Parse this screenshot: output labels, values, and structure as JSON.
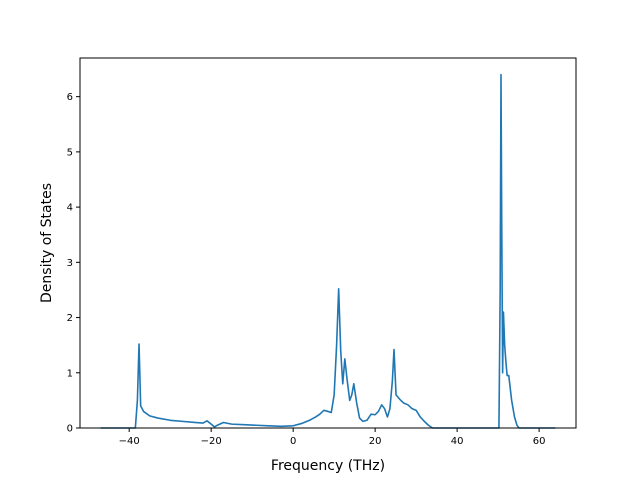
{
  "chart_data": {
    "type": "line",
    "title": "",
    "xlabel": "Frequency (THz)",
    "ylabel": "Density of States",
    "xlim": [
      -52,
      69
    ],
    "ylim": [
      0,
      6.7
    ],
    "xticks": [
      -40,
      -20,
      0,
      20,
      40,
      60
    ],
    "yticks": [
      0,
      1,
      2,
      3,
      4,
      5,
      6
    ],
    "grid": false,
    "legend": "none",
    "series": [
      {
        "color": "#1f77b4",
        "x": [
          -47,
          -38.5,
          -38,
          -37.6,
          -37.2,
          -36.5,
          -35,
          -33,
          -30,
          -27,
          -24,
          -22,
          -21,
          -20,
          -19.2,
          -18.5,
          -17,
          -15,
          -12,
          -9,
          -6,
          -3,
          0,
          2,
          4,
          5.5,
          6.5,
          7.5,
          8.5,
          9.3,
          10,
          10.6,
          11.1,
          11.6,
          12.1,
          12.6,
          13.2,
          13.8,
          14.3,
          14.8,
          15.5,
          16.2,
          17,
          18,
          19,
          20,
          20.8,
          21.6,
          22.3,
          23,
          23.6,
          24.2,
          24.6,
          25.1,
          26,
          27,
          28,
          29,
          30,
          31,
          32,
          33,
          34,
          35,
          40,
          45,
          50.2,
          50.5,
          50.7,
          50.9,
          51.1,
          51.3,
          51.6,
          51.9,
          52.2,
          52.6,
          53.3,
          54,
          54.6,
          55.1,
          55.6,
          60,
          64
        ],
        "values": [
          0,
          0,
          0.5,
          1.52,
          0.4,
          0.3,
          0.22,
          0.18,
          0.14,
          0.12,
          0.1,
          0.09,
          0.13,
          0.07,
          0.02,
          0.05,
          0.1,
          0.07,
          0.06,
          0.05,
          0.04,
          0.03,
          0.04,
          0.08,
          0.14,
          0.2,
          0.25,
          0.32,
          0.3,
          0.28,
          0.6,
          1.5,
          2.52,
          1.4,
          0.8,
          1.25,
          0.85,
          0.5,
          0.6,
          0.8,
          0.45,
          0.18,
          0.12,
          0.14,
          0.25,
          0.24,
          0.3,
          0.42,
          0.35,
          0.2,
          0.35,
          0.85,
          1.42,
          0.6,
          0.52,
          0.45,
          0.42,
          0.35,
          0.32,
          0.2,
          0.12,
          0.05,
          0,
          0,
          0,
          0,
          0,
          2.5,
          6.4,
          3.5,
          1.0,
          2.1,
          1.5,
          1.2,
          0.95,
          0.95,
          0.5,
          0.2,
          0.05,
          0,
          0,
          0,
          0
        ]
      }
    ]
  }
}
